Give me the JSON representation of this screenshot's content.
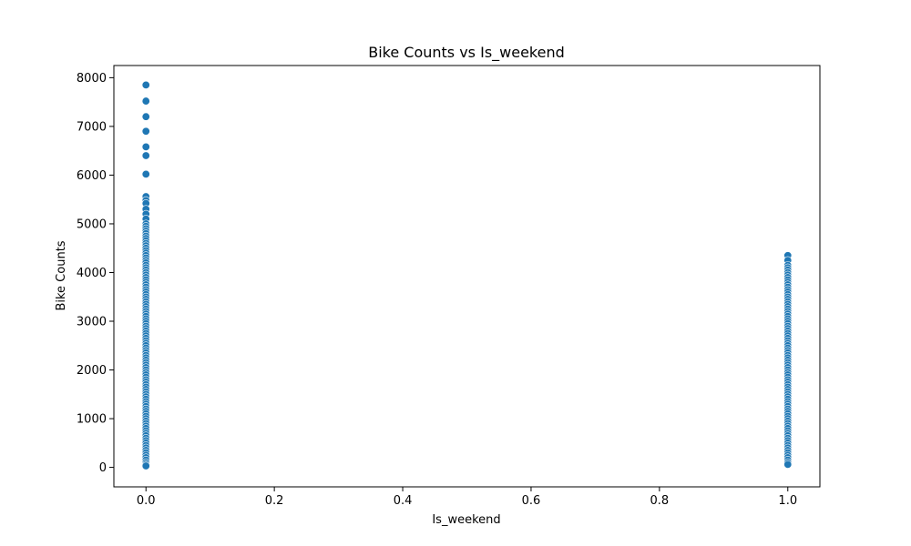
{
  "chart_data": {
    "type": "scatter",
    "title": "Bike Counts vs Is_weekend",
    "xlabel": "Is_weekend",
    "ylabel": "Bike Counts",
    "xlim": [
      -0.05,
      1.05
    ],
    "ylim": [
      -400,
      8250
    ],
    "x_ticks": [
      "0.0",
      "0.2",
      "0.4",
      "0.6",
      "0.8",
      "1.0"
    ],
    "y_ticks": [
      "0",
      "1000",
      "2000",
      "3000",
      "4000",
      "5000",
      "6000",
      "7000",
      "8000"
    ],
    "grid": false,
    "marker_color": "#1f77b4",
    "series": [
      {
        "x": 0,
        "values": [
          7850,
          7520,
          7200,
          6900,
          6580,
          6400,
          6020,
          5560,
          5480,
          5420,
          5300,
          5200,
          5100,
          5000,
          4950,
          4900,
          4850,
          4800,
          4750,
          4700,
          4650,
          4600,
          4550,
          4500,
          4450,
          4400,
          4350,
          4300,
          4250,
          4200,
          4150,
          4100,
          4050,
          4000,
          3950,
          3900,
          3850,
          3800,
          3750,
          3700,
          3650,
          3600,
          3550,
          3500,
          3450,
          3400,
          3350,
          3300,
          3250,
          3200,
          3150,
          3100,
          3050,
          3000,
          2950,
          2900,
          2850,
          2800,
          2750,
          2700,
          2650,
          2600,
          2550,
          2500,
          2450,
          2400,
          2350,
          2300,
          2250,
          2200,
          2150,
          2100,
          2050,
          2000,
          1950,
          1900,
          1850,
          1800,
          1750,
          1700,
          1650,
          1600,
          1550,
          1500,
          1450,
          1400,
          1350,
          1300,
          1250,
          1200,
          1150,
          1100,
          1050,
          1000,
          950,
          900,
          850,
          800,
          750,
          700,
          650,
          600,
          550,
          500,
          450,
          400,
          350,
          300,
          250,
          200,
          150,
          100,
          60,
          30
        ]
      },
      {
        "x": 1,
        "values": [
          4350,
          4250,
          4150,
          4100,
          4050,
          4000,
          3950,
          3900,
          3850,
          3800,
          3750,
          3700,
          3650,
          3600,
          3550,
          3500,
          3450,
          3400,
          3350,
          3300,
          3250,
          3200,
          3150,
          3100,
          3050,
          3000,
          2950,
          2900,
          2850,
          2800,
          2750,
          2700,
          2650,
          2600,
          2550,
          2500,
          2450,
          2400,
          2350,
          2300,
          2250,
          2200,
          2150,
          2100,
          2050,
          2000,
          1950,
          1900,
          1850,
          1800,
          1750,
          1700,
          1650,
          1600,
          1550,
          1500,
          1450,
          1400,
          1350,
          1300,
          1250,
          1200,
          1150,
          1100,
          1050,
          1000,
          950,
          900,
          850,
          800,
          750,
          700,
          650,
          600,
          550,
          500,
          450,
          400,
          350,
          300,
          250,
          200,
          150,
          100,
          60
        ]
      }
    ]
  }
}
